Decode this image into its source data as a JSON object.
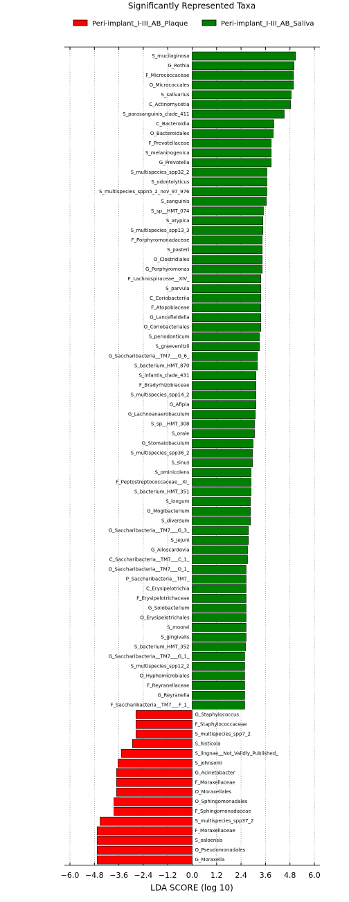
{
  "chart_data": {
    "type": "hbar_diverging",
    "title": "Significantly Represented Taxa",
    "x_label": "LDA SCORE (log 10)",
    "categories": [
      "S_mucilaginosa",
      "G_Rothia",
      "F_Micrococcaceae",
      "O_Micrococcales",
      "S_salivarius",
      "C_Actinomycetia",
      "S_parasanguinis_clade_411",
      "C_Bacteroidia",
      "O_Bacteroidales",
      "F_Prevotellaceae",
      "S_melaninogenica",
      "G_Prevotella",
      "S_multispecies_spp32_2",
      "S_odontolyticus",
      "S_multispecies_sppn5_2_nov_97_976",
      "S_sanguinis",
      "S_sp__HMT_074",
      "S_atypica",
      "S_multispecies_spp13_3",
      "F_Porphyromonadaceae",
      "S_pasteri",
      "O_Clostridiales",
      "G_Porphyromonas",
      "F_Lachnospiraceae__XIV_",
      "S_parvula",
      "C_Coriobacteriia",
      "F_Atopobiaceae",
      "G_Lancefieldella",
      "O_Coriobacteriales",
      "S_periodonticum",
      "S_graevenitzii",
      "G_Saccharibacteria__TM7___G_6_",
      "S_bacterium_HMT_870",
      "S_infantis_clade_431",
      "F_Bradyrhizobiaceae",
      "S_multispecies_spp14_2",
      "G_Afipia",
      "G_Lachnoanaerobaculum",
      "S_sp__HMT_308",
      "S_orale",
      "G_Stomatobaculum",
      "S_multispecies_spp36_2",
      "S_sinus",
      "S_ominicolens",
      "F_Peptostreptococcaceae__XI_",
      "S_bacterium_HMT_351",
      "S_longum",
      "G_Mogibacterium",
      "S_diversum",
      "G_Saccharibacteria__TM7___G_3_",
      "S_jejuni",
      "G_Alloscardovia",
      "C_Saccharibacteria__TM7___C_1_",
      "O_Saccharibacteria__TM7___O_1_",
      "P_Saccharibacteria__TM7_",
      "C_Erysipelotrichia",
      "F_Erysipelotrichaceae",
      "G_Solobacterium",
      "O_Erysipelotrichales",
      "S_moorei",
      "S_gingivalis",
      "S_bacterium_HMT_352",
      "G_Saccharibacteria__TM7___G_1_",
      "S_multispecies_spp12_2",
      "O_Hyphomicrobiales",
      "F_Reyranellaceae",
      "G_Reyranella",
      "F_Saccharibacteria__TM7___F_1_",
      "G_Staphylococcus",
      "F_Staphylococcaceae",
      "S_multispecies_spp7_2",
      "S_histicola",
      "S_lingnae__Not_Validly_Published_",
      "S_johnsonii",
      "G_Acinetobacter",
      "F_Moraxellaceae",
      "O_Moraxellales",
      "O_Sphingomonadales",
      "F_Sphingomonadaceae",
      "S_multispecies_spp37_2",
      "F_Moraxellaceae",
      "S_osloensis",
      "O_Pseudomonadales",
      "G_Moraxella"
    ],
    "series": [
      {
        "name": "Peri-implant_I-III_AB_Plaque",
        "color": "#ff0000",
        "values": [
          null,
          null,
          null,
          null,
          null,
          null,
          null,
          null,
          null,
          null,
          null,
          null,
          null,
          null,
          null,
          null,
          null,
          null,
          null,
          null,
          null,
          null,
          null,
          null,
          null,
          null,
          null,
          null,
          null,
          null,
          null,
          null,
          null,
          null,
          null,
          null,
          null,
          null,
          null,
          null,
          null,
          null,
          null,
          null,
          null,
          null,
          null,
          null,
          null,
          null,
          null,
          null,
          null,
          null,
          null,
          null,
          null,
          null,
          null,
          null,
          null,
          null,
          null,
          null,
          null,
          null,
          null,
          null,
          -2.76,
          -2.76,
          -2.76,
          -2.93,
          -3.47,
          -3.64,
          -3.71,
          -3.71,
          -3.71,
          -3.84,
          -3.84,
          -4.52,
          -4.66,
          -4.66,
          -4.66,
          -4.66
        ]
      },
      {
        "name": "Peri-implant_I-III_AB_Saliva",
        "color": "#008000",
        "values": [
          5.07,
          5.0,
          4.97,
          4.97,
          4.86,
          4.83,
          4.52,
          4.01,
          3.98,
          3.88,
          3.88,
          3.88,
          3.67,
          3.67,
          3.67,
          3.64,
          3.5,
          3.47,
          3.47,
          3.44,
          3.44,
          3.44,
          3.44,
          3.37,
          3.37,
          3.37,
          3.37,
          3.37,
          3.37,
          3.3,
          3.3,
          3.2,
          3.2,
          3.13,
          3.13,
          3.13,
          3.13,
          3.1,
          3.06,
          3.06,
          2.99,
          2.96,
          2.96,
          2.89,
          2.89,
          2.89,
          2.86,
          2.86,
          2.86,
          2.76,
          2.76,
          2.72,
          2.72,
          2.65,
          2.65,
          2.65,
          2.65,
          2.65,
          2.65,
          2.65,
          2.65,
          2.62,
          2.58,
          2.58,
          2.58,
          2.58,
          2.58,
          2.58,
          null,
          null,
          null,
          null,
          null,
          null,
          null,
          null,
          null,
          null,
          null,
          null,
          null,
          null,
          null,
          null
        ]
      }
    ],
    "xlim": [
      -6,
      6
    ],
    "xticks": [
      {
        "value": -6,
        "label": "−6.0"
      },
      {
        "value": -4.8,
        "label": "−4.8"
      },
      {
        "value": -3.6,
        "label": "−3.6"
      },
      {
        "value": -2.4,
        "label": "−2.4"
      },
      {
        "value": -1.2,
        "label": "−1.2"
      },
      {
        "value": 0,
        "label": "0.0"
      },
      {
        "value": 1.2,
        "label": "1.2"
      },
      {
        "value": 2.4,
        "label": "2.4"
      },
      {
        "value": 3.6,
        "label": "3.6"
      },
      {
        "value": 4.8,
        "label": "4.8"
      },
      {
        "value": 6,
        "label": "6.0"
      }
    ],
    "grid": true
  }
}
